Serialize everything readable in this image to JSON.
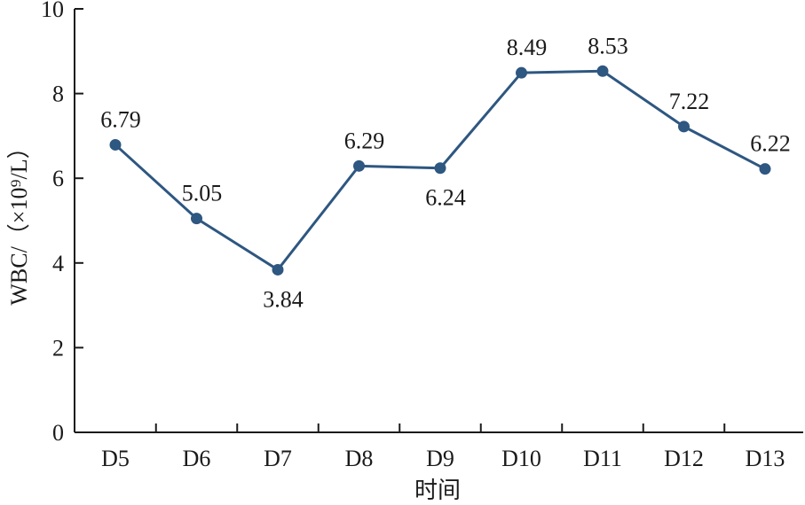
{
  "chart_data": {
    "type": "line",
    "categories": [
      "D5",
      "D6",
      "D7",
      "D8",
      "D9",
      "D10",
      "D11",
      "D12",
      "D13"
    ],
    "series": [
      {
        "values": [
          6.79,
          5.05,
          3.84,
          6.29,
          6.24,
          8.49,
          8.53,
          7.22,
          6.22
        ],
        "labels": [
          "6.79",
          "5.05",
          "3.84",
          "6.29",
          "6.24",
          "8.49",
          "8.53",
          "7.22",
          "6.22"
        ],
        "label_position": [
          "above",
          "above",
          "below",
          "above",
          "below",
          "above",
          "above",
          "above",
          "above"
        ],
        "color": "#2e5781"
      }
    ],
    "xlabel": "时间",
    "ylabel": "WBC/（×10⁹/L）",
    "ylim": [
      0,
      10
    ],
    "yticks": [
      "0",
      "2",
      "4",
      "6",
      "8",
      "10"
    ],
    "grid": false
  }
}
